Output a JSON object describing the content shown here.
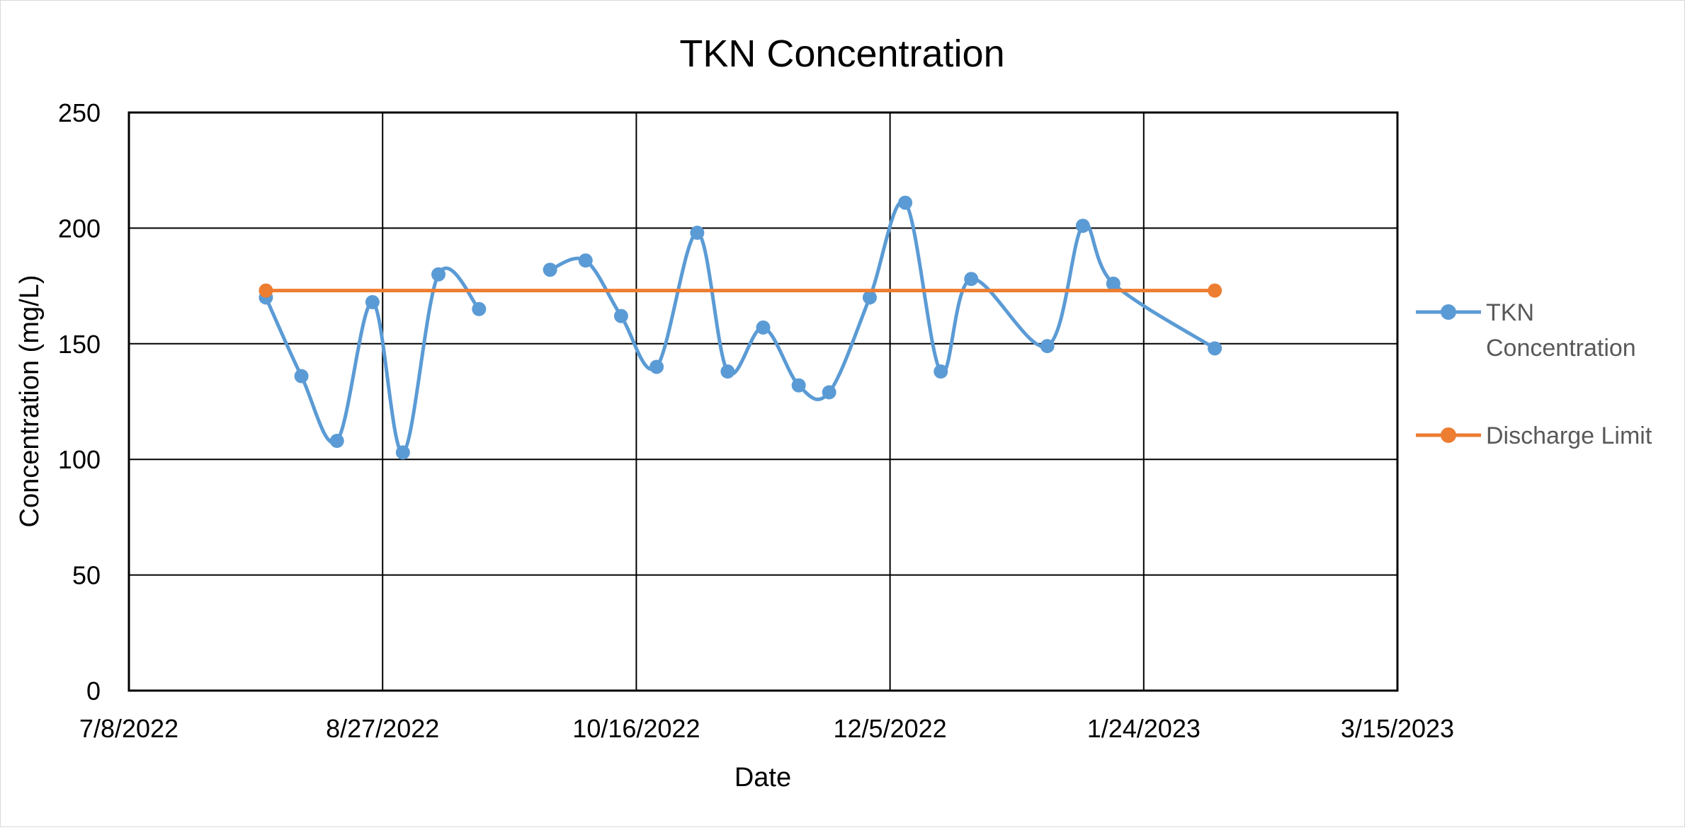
{
  "chart_data": {
    "type": "line",
    "title": "TKN Concentration",
    "xlabel": "Date",
    "ylabel": "Concentration (mg/L)",
    "x_axis": {
      "type": "date",
      "min": "2022-07-08",
      "max": "2023-03-15",
      "major_unit_days": 50,
      "tick_labels": [
        "7/8/2022",
        "8/27/2022",
        "10/16/2022",
        "12/5/2022",
        "1/24/2023",
        "3/15/2023"
      ]
    },
    "y_axis": {
      "min": 0,
      "max": 250,
      "major_unit": 50,
      "tick_labels": [
        "0",
        "50",
        "100",
        "150",
        "200",
        "250"
      ]
    },
    "grid": true,
    "legend": "right",
    "series": [
      {
        "name": "TKN Concentration",
        "color": "#5b9bd5",
        "smooth": true,
        "points": [
          {
            "x": "2022-08-04",
            "y": 170
          },
          {
            "x": "2022-08-11",
            "y": 136
          },
          {
            "x": "2022-08-18",
            "y": 108
          },
          {
            "x": "2022-08-25",
            "y": 168
          },
          {
            "x": "2022-08-31",
            "y": 103
          },
          {
            "x": "2022-09-07",
            "y": 180
          },
          {
            "x": "2022-09-15",
            "y": 165
          },
          {
            "x": "2022-09-29",
            "y": null
          },
          {
            "x": "2022-09-29",
            "y": 182
          },
          {
            "x": "2022-10-06",
            "y": 186
          },
          {
            "x": "2022-10-13",
            "y": 162
          },
          {
            "x": "2022-10-20",
            "y": 140
          },
          {
            "x": "2022-10-28",
            "y": 198
          },
          {
            "x": "2022-11-03",
            "y": 138
          },
          {
            "x": "2022-11-10",
            "y": 157
          },
          {
            "x": "2022-11-17",
            "y": 132
          },
          {
            "x": "2022-11-23",
            "y": 129
          },
          {
            "x": "2022-12-01",
            "y": 170
          },
          {
            "x": "2022-12-08",
            "y": 211
          },
          {
            "x": "2022-12-15",
            "y": 138
          },
          {
            "x": "2022-12-21",
            "y": 178
          },
          {
            "x": "2023-01-05",
            "y": 149
          },
          {
            "x": "2023-01-12",
            "y": 201
          },
          {
            "x": "2023-01-18",
            "y": 176
          },
          {
            "x": "2023-02-07",
            "y": 148
          }
        ]
      },
      {
        "name": "Discharge Limit",
        "color": "#ed7d31",
        "smooth": false,
        "points": [
          {
            "x": "2022-08-04",
            "y": 173
          },
          {
            "x": "2023-02-07",
            "y": 173
          }
        ]
      }
    ]
  }
}
